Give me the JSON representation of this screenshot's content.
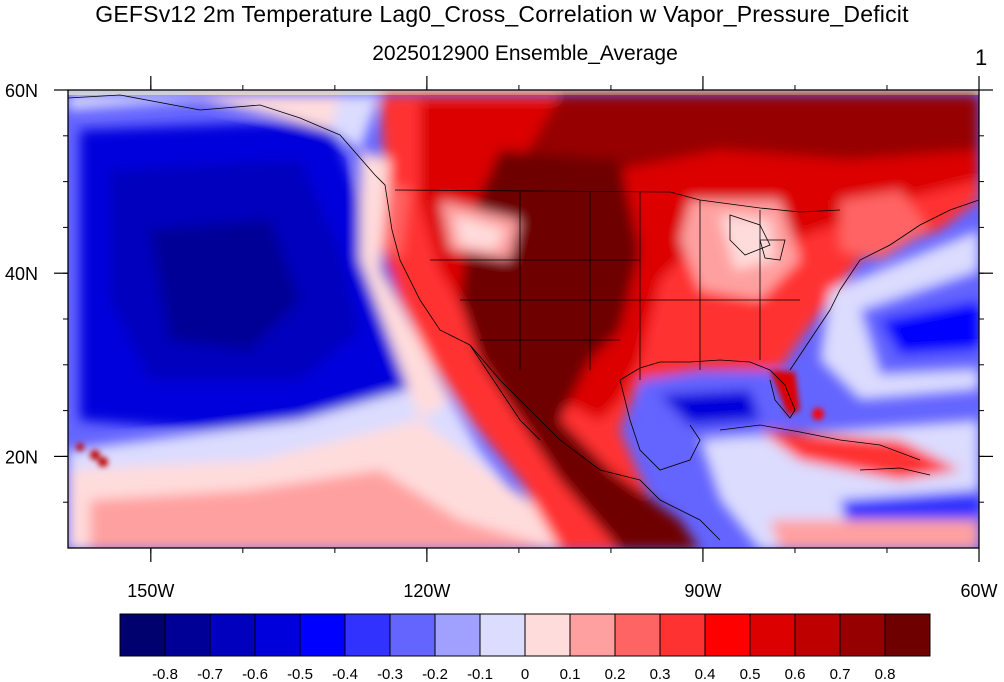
{
  "title": "GEFSv12 2m Temperature Lag0_Cross_Correlation w Vapor_Pressure_Deficit",
  "subtitle": "2025012900 Ensemble_Average",
  "panel_number": "1",
  "map": {
    "projection": "cylindrical-equidistant",
    "lon_range": [
      -159,
      -60
    ],
    "lat_range": [
      10,
      60
    ],
    "lat_ticks": [
      {
        "value": 60,
        "label": "60N"
      },
      {
        "value": 40,
        "label": "40N"
      },
      {
        "value": 20,
        "label": "20N"
      }
    ],
    "lon_ticks": [
      {
        "value": -150,
        "label": "150W"
      },
      {
        "value": -120,
        "label": "120W"
      },
      {
        "value": -90,
        "label": "90W"
      },
      {
        "value": -60,
        "label": "60W"
      }
    ],
    "field": "Lag0 cross correlation, 2m temperature vs vapor pressure deficit",
    "missing_color": "#c8c8c8"
  },
  "colorbar": {
    "boundaries": [
      "-0.8",
      "-0.7",
      "-0.6",
      "-0.5",
      "-0.4",
      "-0.3",
      "-0.2",
      "-0.1",
      "0",
      "0.1",
      "0.2",
      "0.3",
      "0.4",
      "0.5",
      "0.6",
      "0.7",
      "0.8"
    ],
    "colors": [
      "#00006e",
      "#000096",
      "#0000be",
      "#0000dc",
      "#0000ff",
      "#3232ff",
      "#6464ff",
      "#a0a0ff",
      "#dcdcff",
      "#ffdcdc",
      "#ffa0a0",
      "#ff6464",
      "#ff3232",
      "#ff0000",
      "#dc0000",
      "#be0000",
      "#960000",
      "#6e0000"
    ]
  }
}
